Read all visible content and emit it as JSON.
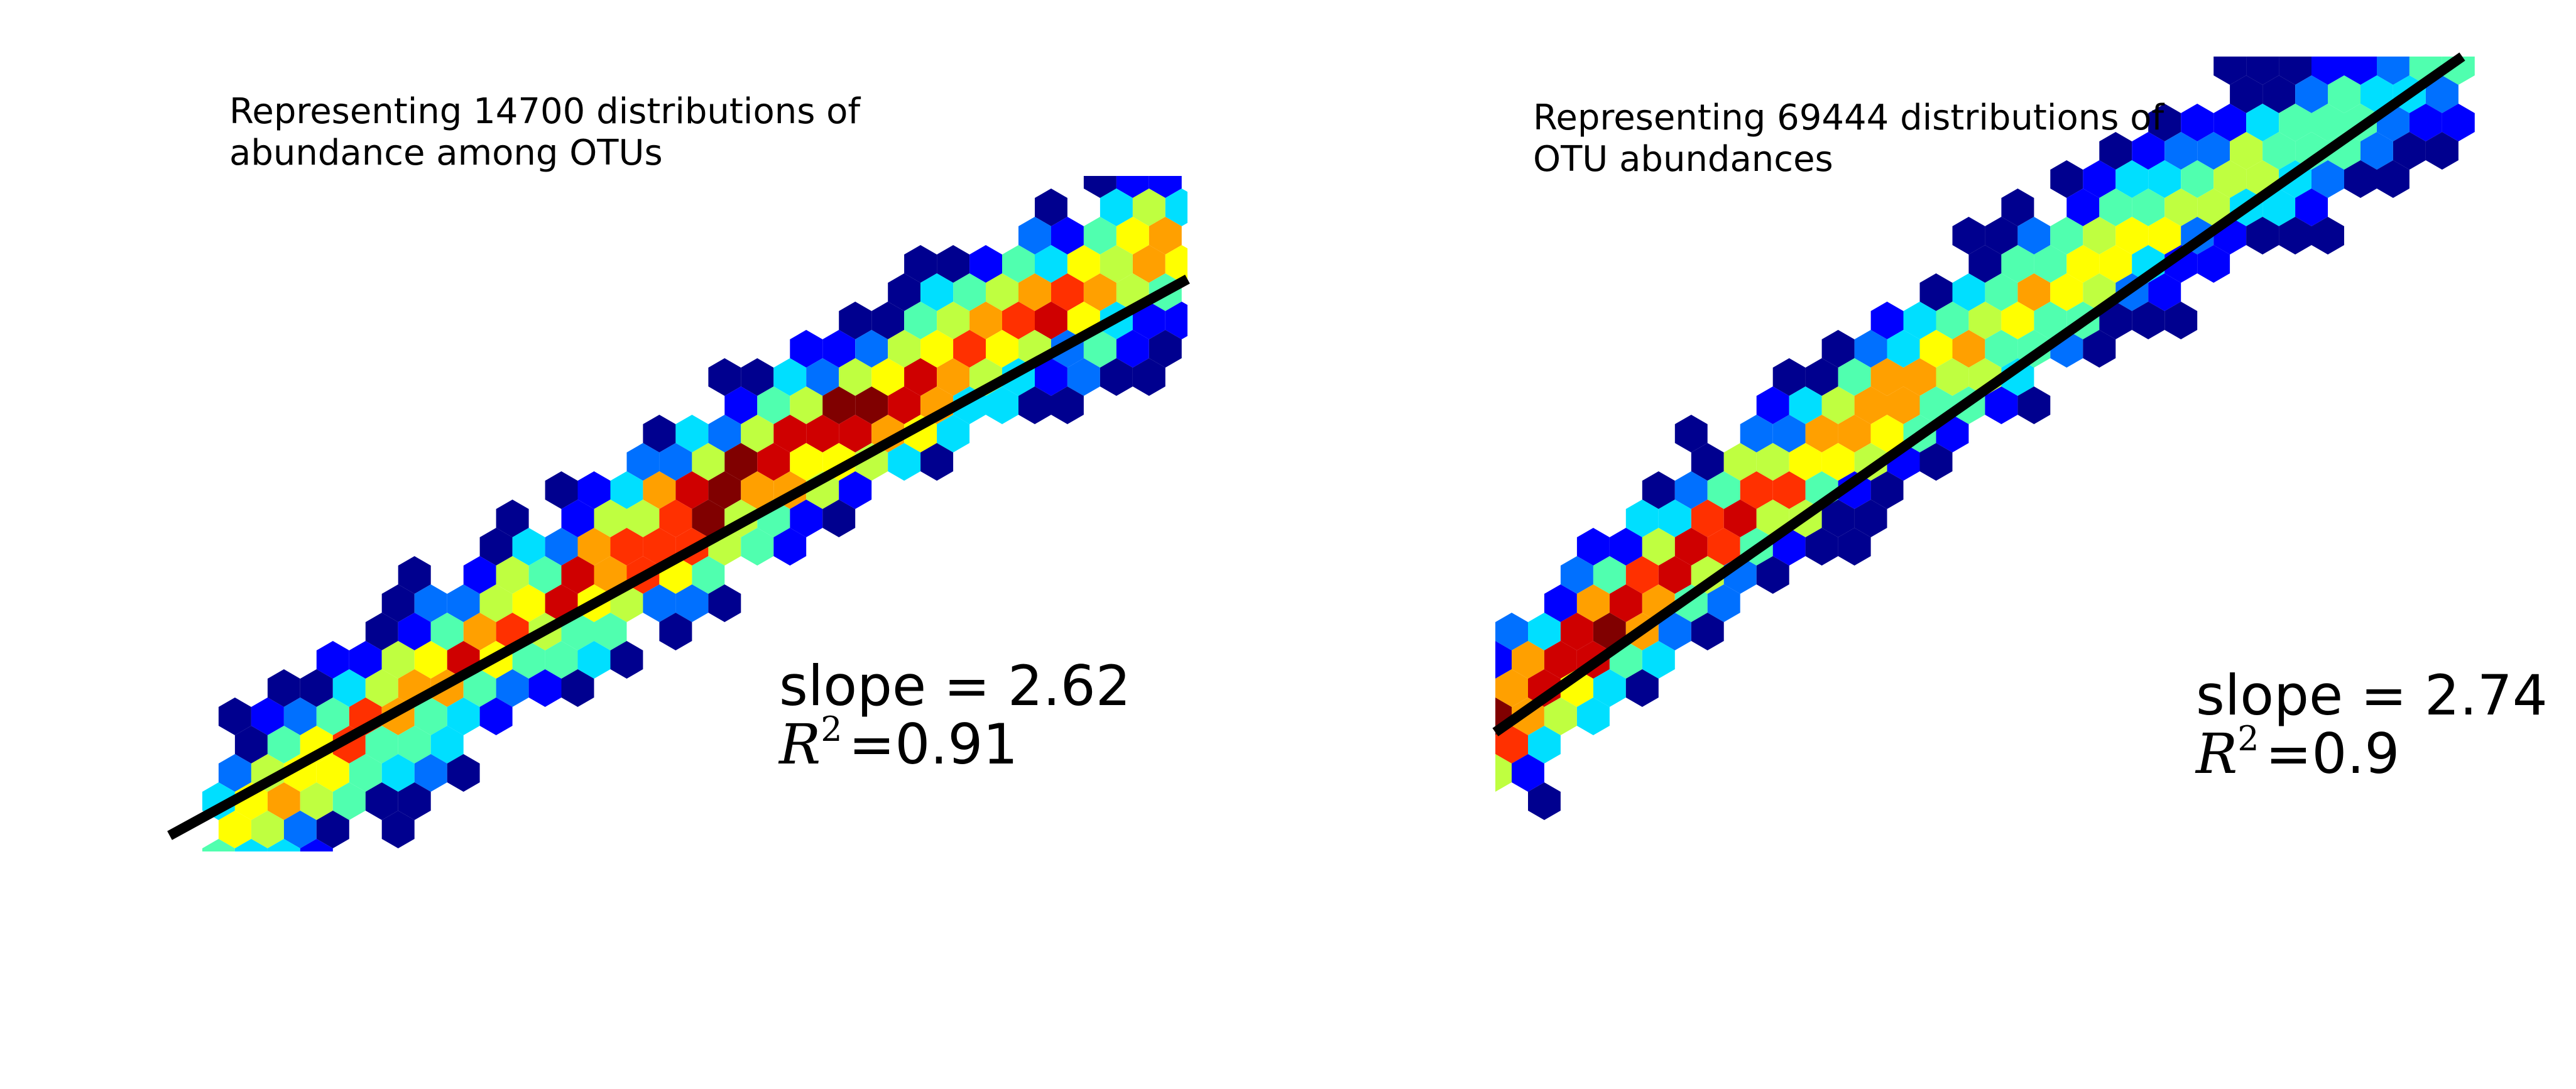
{
  "chart_data": [
    {
      "type": "hexbin",
      "title": "Representing 14700 distributions of",
      "subtitle": "abundance among OTUs",
      "xlabel": "",
      "ylabel": "",
      "axes_visible": false,
      "grid": false,
      "colormap": "jet",
      "colors": [
        "#00008f",
        "#0000ff",
        "#0070ff",
        "#00dfff",
        "#50ffaf",
        "#bfff40",
        "#ffff00",
        "#ffa000",
        "#ff3000",
        "#cf0000",
        "#800000"
      ],
      "xlim": [
        0,
        10
      ],
      "ylim": [
        0,
        10
      ],
      "hexbin": {
        "x_range": [
          0.35,
          10
        ],
        "y_at_x_start": 0.0,
        "center_slope": 0.98,
        "center_curvature": -0.019,
        "spread_halfwidth": 1.25,
        "peak_x": 5.8
      },
      "regression": {
        "slope_label": "slope = 2.62",
        "r2_prefix": "R",
        "r2_value": "=0.91",
        "line": [
          [
            0.0,
            0.2
          ],
          [
            10.0,
            7.2
          ]
        ]
      },
      "colors_line": "#000000"
    },
    {
      "type": "hexbin",
      "title": "Representing 69444 distributions of",
      "subtitle": "OTU abundances",
      "xlabel": "",
      "ylabel": "",
      "axes_visible": false,
      "grid": false,
      "colormap": "jet",
      "colors": [
        "#00008f",
        "#0000ff",
        "#0070ff",
        "#00dfff",
        "#50ffaf",
        "#bfff40",
        "#ffff00",
        "#ffa000",
        "#ff3000",
        "#cf0000",
        "#800000"
      ],
      "xlim": [
        0,
        10
      ],
      "ylim": [
        0,
        10
      ],
      "hexbin": {
        "x_range": [
          0.0,
          9.6
        ],
        "y_at_x_start": 1.6,
        "center_slope": 1.15,
        "center_curvature": -0.028,
        "spread_halfwidth": 1.15,
        "peak_x": 0.8
      },
      "regression": {
        "slope_label": "slope = 2.74",
        "r2_prefix": "R",
        "r2_value": "=0.9",
        "line": [
          [
            0.0,
            1.5
          ],
          [
            9.5,
            10.0
          ]
        ]
      },
      "colors_line": "#000000"
    }
  ]
}
